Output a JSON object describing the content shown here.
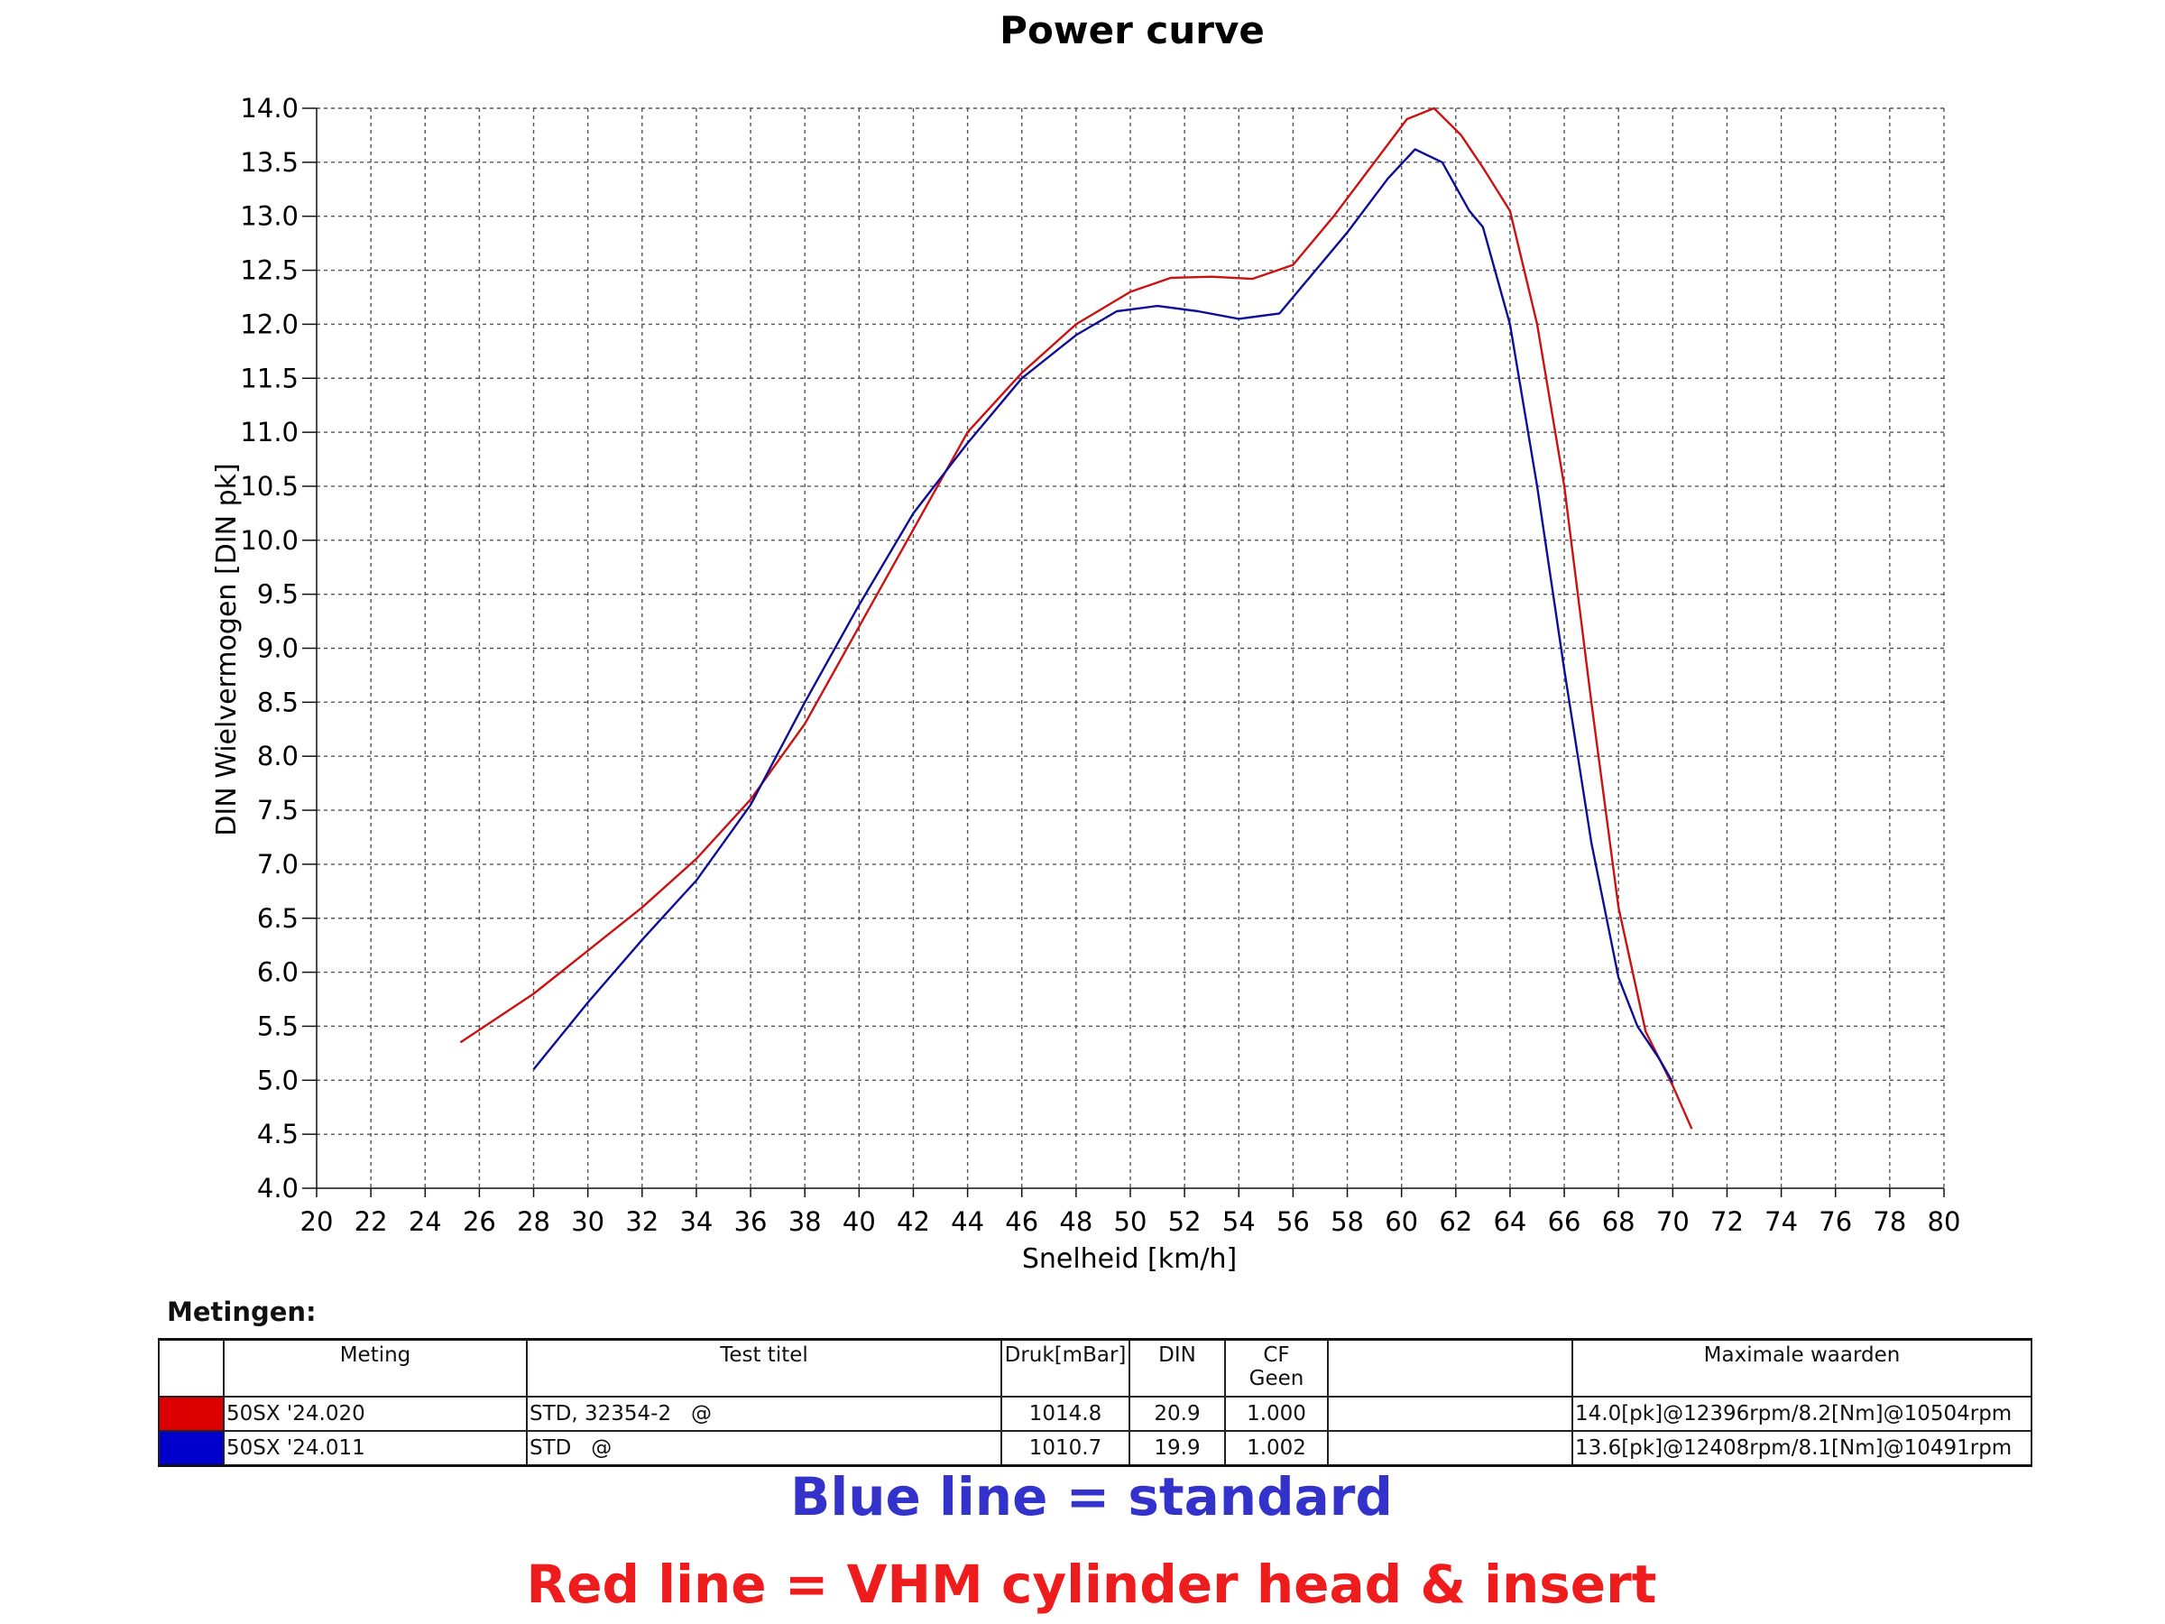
{
  "chart_data": {
    "type": "line",
    "title": "Power curve",
    "xlabel": "Snelheid [km/h]",
    "ylabel": "DIN Wielvermogen [DIN pk]",
    "xlim": [
      20,
      80
    ],
    "ylim": [
      4.0,
      14.0
    ],
    "x_ticks": [
      "20",
      "22",
      "24",
      "26",
      "28",
      "30",
      "32",
      "34",
      "36",
      "38",
      "40",
      "42",
      "44",
      "46",
      "48",
      "50",
      "52",
      "54",
      "56",
      "58",
      "60",
      "62",
      "64",
      "66",
      "68",
      "70",
      "72",
      "74",
      "76",
      "78",
      "80"
    ],
    "y_ticks": [
      "14.0",
      "13.5",
      "13.0",
      "12.5",
      "12.0",
      "11.5",
      "11.0",
      "10.5",
      "10.0",
      "9.5",
      "9.0",
      "8.5",
      "8.0",
      "7.5",
      "7.0",
      "6.5",
      "6.0",
      "5.5",
      "5.0",
      "4.5",
      "4.0"
    ],
    "grid": true,
    "series": [
      {
        "color": "#cc1111",
        "points": [
          [
            25.3,
            5.35
          ],
          [
            28,
            5.8
          ],
          [
            30,
            6.2
          ],
          [
            32,
            6.6
          ],
          [
            34,
            7.05
          ],
          [
            36,
            7.6
          ],
          [
            38,
            8.3
          ],
          [
            40,
            9.2
          ],
          [
            42,
            10.1
          ],
          [
            44,
            11.0
          ],
          [
            46,
            11.55
          ],
          [
            48,
            12.0
          ],
          [
            50,
            12.3
          ],
          [
            51.5,
            12.43
          ],
          [
            53,
            12.44
          ],
          [
            54.5,
            12.42
          ],
          [
            56,
            12.55
          ],
          [
            57.5,
            13.0
          ],
          [
            59,
            13.5
          ],
          [
            60.2,
            13.9
          ],
          [
            61.2,
            14.0
          ],
          [
            62.2,
            13.75
          ],
          [
            63,
            13.45
          ],
          [
            64,
            13.05
          ],
          [
            65,
            12.0
          ],
          [
            66,
            10.5
          ],
          [
            67,
            8.5
          ],
          [
            68,
            6.6
          ],
          [
            69,
            5.45
          ],
          [
            70,
            4.95
          ],
          [
            70.7,
            4.55
          ]
        ]
      },
      {
        "color": "#0d0d99",
        "points": [
          [
            28,
            5.1
          ],
          [
            30,
            5.72
          ],
          [
            32,
            6.3
          ],
          [
            34,
            6.85
          ],
          [
            36,
            7.55
          ],
          [
            38,
            8.5
          ],
          [
            40,
            9.4
          ],
          [
            42,
            10.25
          ],
          [
            44,
            10.9
          ],
          [
            46,
            11.5
          ],
          [
            48,
            11.9
          ],
          [
            49.5,
            12.12
          ],
          [
            51,
            12.17
          ],
          [
            52.5,
            12.12
          ],
          [
            54,
            12.05
          ],
          [
            55.5,
            12.1
          ],
          [
            56.5,
            12.4
          ],
          [
            58,
            12.85
          ],
          [
            59.5,
            13.35
          ],
          [
            60.5,
            13.62
          ],
          [
            61.5,
            13.5
          ],
          [
            62.5,
            13.05
          ],
          [
            63,
            12.9
          ],
          [
            64,
            12.0
          ],
          [
            65,
            10.5
          ],
          [
            66,
            8.8
          ],
          [
            67,
            7.2
          ],
          [
            68,
            5.95
          ],
          [
            68.7,
            5.5
          ],
          [
            69.5,
            5.2
          ],
          [
            70,
            4.98
          ]
        ]
      }
    ]
  },
  "measurements": {
    "section_title": "Metingen:",
    "headers": {
      "meting": "Meting",
      "test_titel": "Test titel",
      "druk": "Druk[mBar]",
      "din": "DIN",
      "cf": "CF",
      "cf2": "Geen",
      "blank": "",
      "max": "Maximale waarden"
    },
    "rows": [
      {
        "color": "#dd0000",
        "meting": "50SX '24.020",
        "test_titel": "STD, 32354-2   @",
        "druk": "1014.8",
        "din": "20.9",
        "cf": "1.000",
        "blank": "",
        "max": "14.0[pk]@12396rpm/8.2[Nm]@10504rpm"
      },
      {
        "color": "#0000cc",
        "meting": "50SX '24.011",
        "test_titel": "STD   @",
        "druk": "1010.7",
        "din": "19.9",
        "cf": "1.002",
        "blank": "",
        "max": "13.6[pk]@12408rpm/8.1[Nm]@10491rpm"
      }
    ]
  },
  "captions": {
    "blue": "Blue line = standard",
    "red": "Red line = VHM cylinder head & insert"
  }
}
